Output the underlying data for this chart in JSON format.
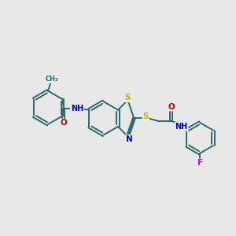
{
  "bg_color": "#e8e8e8",
  "bond_color": "#2d6b6b",
  "bond_width": 1.4,
  "dbo": 0.06,
  "atom_colors": {
    "S": "#b8b800",
    "N": "#0000cc",
    "O": "#cc0000",
    "F": "#cc00cc",
    "C": "#2d6b6b"
  },
  "afs": 7.5,
  "fig_w": 3.0,
  "fig_h": 3.0,
  "xlim": [
    0,
    10
  ],
  "ylim": [
    0,
    10
  ]
}
